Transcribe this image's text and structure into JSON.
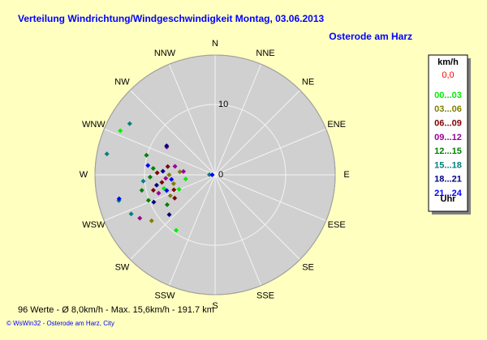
{
  "chart_data": {
    "type": "polar-scatter",
    "title": "Verteilung Windrichtung/Windgeschwindigkeit  Montag, 03.06.2013",
    "subtitle": "Osterode am Harz",
    "categories": [
      "N",
      "NNE",
      "NE",
      "ENE",
      "E",
      "ESE",
      "SE",
      "SSE",
      "S",
      "SSW",
      "SW",
      "WSW",
      "W",
      "WNW",
      "NW",
      "NNW"
    ],
    "rlim": [
      0,
      17
    ],
    "rticks": [
      10,
      {
        "value": 0,
        "label": "0"
      }
    ],
    "legend_title": "km/h",
    "calm": "0,0",
    "legend_footer": "Uhr",
    "series": [
      {
        "name": "00...03",
        "color": "#00ee00",
        "direction": [
          295,
          215,
          255,
          262,
          248
        ],
        "values": [
          14.8,
          9.6,
          7.5,
          4.2,
          5.5
        ]
      },
      {
        "name": "03...06",
        "color": "#808000",
        "direction": [
          234,
          270,
          258,
          245,
          275
        ],
        "values": [
          11.1,
          6.5,
          6.0,
          7.0,
          5.0
        ]
      },
      {
        "name": "06...09",
        "color": "#800000",
        "direction": [
          262,
          250,
          272,
          240,
          256,
          280
        ],
        "values": [
          7.6,
          6.2,
          8.2,
          6.6,
          9.0,
          6.8
        ]
      },
      {
        "name": "09...12",
        "color": "#990099",
        "direction": [
          240,
          266,
          282,
          252,
          276,
          300
        ],
        "values": [
          12.3,
          7.0,
          5.8,
          8.4,
          4.5,
          7.9
        ]
      },
      {
        "name": "12...15",
        "color": "#008000",
        "direction": [
          249,
          286,
          268,
          258,
          276,
          238
        ],
        "values": [
          10.1,
          10.1,
          9.2,
          10.6,
          8.8,
          8.0
        ]
      },
      {
        "name": "15...18",
        "color": "#008080",
        "direction": [
          301,
          281,
          255,
          245,
          265,
          272
        ],
        "values": [
          14.1,
          15.6,
          14.1,
          13.1,
          10.2,
          0.8
        ]
      },
      {
        "name": "18...21",
        "color": "#000080",
        "direction": [
          229,
          301,
          260,
          274,
          246
        ],
        "values": [
          8.6,
          8.0,
          8.4,
          7.4,
          9.5
        ]
      },
      {
        "name": "21...24",
        "color": "#0000ff",
        "direction": [
          256,
          270,
          264,
          278,
          252
        ],
        "values": [
          14.0,
          0.4,
          6.2,
          9.6,
          7.2
        ]
      }
    ],
    "footer": "96 Werte   -   Ø 8,0km/h  -  Max. 15,6km/h   -   191.7 km",
    "credit": "© WsWin32  -  Osterode am Harz, City"
  }
}
